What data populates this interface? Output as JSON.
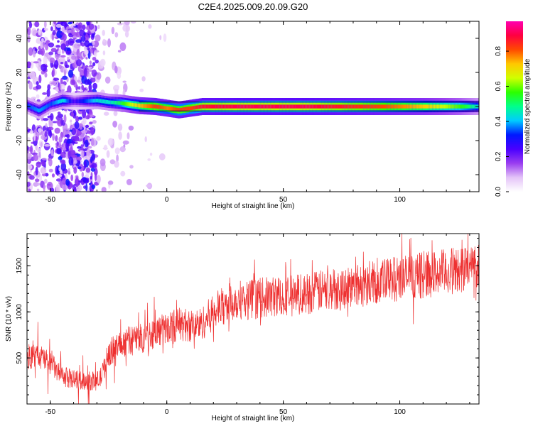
{
  "title": "C2E4.2025.009.20.09.G20",
  "chart_data": [
    {
      "type": "heatmap",
      "xlabel": "Height of straight line (km)",
      "ylabel": "Frequency (Hz)",
      "xlim": [
        -60,
        134
      ],
      "ylim": [
        -50,
        50
      ],
      "xticks": [
        -50,
        0,
        50,
        100
      ],
      "yticks": [
        -40,
        -20,
        0,
        20,
        40
      ],
      "grid": false,
      "colorbar": {
        "label": "Normalized spectral amplitude",
        "range": [
          0.0,
          0.97
        ],
        "ticks": [
          "0.0",
          "0.2",
          "0.4",
          "0.6",
          "0.8"
        ],
        "colors": [
          "#ffffff",
          "#e4c4f8",
          "#9a3ef0",
          "#4a00ff",
          "#0018ff",
          "#00ccff",
          "#00ff8c",
          "#2cff00",
          "#d0ff00",
          "#ffc800",
          "#ff4a00",
          "#ff0040",
          "#ff00b0"
        ]
      },
      "ridge": [
        {
          "x": -60,
          "f": 0.5,
          "a": 0.35
        },
        {
          "x": -55,
          "f": -2.5,
          "a": 0.4
        },
        {
          "x": -50,
          "f": 1.5,
          "a": 0.35
        },
        {
          "x": -45,
          "f": 3.5,
          "a": 0.45
        },
        {
          "x": -40,
          "f": 3.0,
          "a": 0.25
        },
        {
          "x": -30,
          "f": 3.5,
          "a": 0.45
        },
        {
          "x": -25,
          "f": 2.5,
          "a": 0.45
        },
        {
          "x": -20,
          "f": 2.0,
          "a": 0.55
        },
        {
          "x": -12,
          "f": 0.5,
          "a": 0.75
        },
        {
          "x": -5,
          "f": 0.0,
          "a": 0.85
        },
        {
          "x": 0,
          "f": -1.0,
          "a": 0.8
        },
        {
          "x": 5,
          "f": -2.0,
          "a": 0.85
        },
        {
          "x": 10,
          "f": -1.0,
          "a": 0.85
        },
        {
          "x": 15,
          "f": 0.0,
          "a": 0.9
        },
        {
          "x": 30,
          "f": 0.0,
          "a": 0.93
        },
        {
          "x": 60,
          "f": 0.0,
          "a": 0.93
        },
        {
          "x": 90,
          "f": 0.0,
          "a": 0.85
        },
        {
          "x": 110,
          "f": 0.0,
          "a": 0.75
        },
        {
          "x": 125,
          "f": 0.0,
          "a": 0.6
        },
        {
          "x": 134,
          "f": 0.0,
          "a": 0.45
        }
      ]
    },
    {
      "type": "line",
      "xlabel": "Height of straight line (km)",
      "ylabel": "SNR (10 * v/v)",
      "xlim": [
        -60,
        134
      ],
      "ylim": [
        0,
        1850
      ],
      "xticks": [
        -50,
        0,
        50,
        100
      ],
      "yticks": [
        500,
        1000,
        1500
      ],
      "color": "#ee3030",
      "grid": false,
      "series": [
        {
          "x": [
            -60,
            -55,
            -50,
            -47,
            -45,
            -40,
            -35,
            -30,
            -28,
            -25,
            -20,
            -15,
            -10,
            -5,
            0,
            5,
            10,
            15,
            20,
            25,
            30,
            40,
            50,
            60,
            70,
            80,
            90,
            100,
            110,
            120,
            130,
            134
          ],
          "values": [
            500,
            520,
            450,
            350,
            300,
            270,
            250,
            250,
            300,
            550,
            650,
            700,
            720,
            780,
            820,
            870,
            850,
            870,
            1000,
            1080,
            1130,
            1150,
            1180,
            1200,
            1240,
            1280,
            1320,
            1370,
            1400,
            1430,
            1480,
            1520
          ]
        }
      ]
    }
  ]
}
